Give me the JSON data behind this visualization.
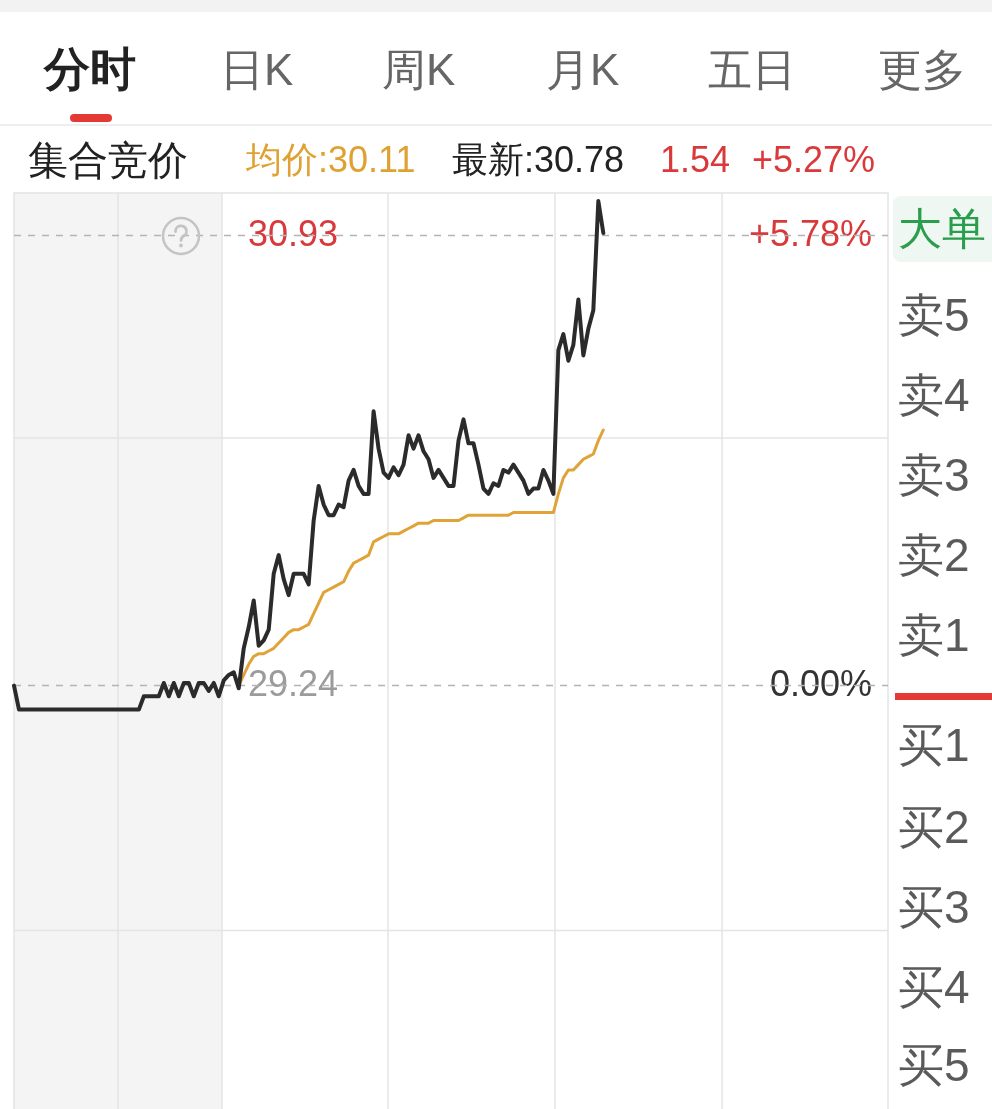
{
  "chart_data": {
    "type": "line",
    "annotations": [
      "分时",
      "日K",
      "周K",
      "月K",
      "五日",
      "更多",
      "集合竞价",
      "均价:30.11",
      "最新:30.78",
      "1.54",
      "+5.27%",
      "大单",
      "卖5",
      "卖4",
      "卖3",
      "卖2",
      "卖1",
      "买1",
      "买2",
      "买3",
      "买4",
      "买5"
    ],
    "categories": [
      null,
      null,
      null,
      null,
      null,
      null,
      null,
      null,
      null,
      null,
      null,
      null,
      null,
      null,
      null,
      null,
      null,
      null,
      null,
      null,
      null,
      null,
      null,
      null,
      null,
      null,
      null,
      null,
      null,
      null,
      null,
      null,
      null,
      null,
      null,
      null,
      null,
      null,
      null,
      null,
      null,
      null,
      null,
      null,
      null,
      null,
      null,
      null,
      null,
      null,
      null,
      null,
      null,
      null,
      null,
      null,
      null,
      null,
      null,
      null,
      null,
      null,
      null,
      null,
      null,
      null,
      null,
      null,
      null,
      null,
      null,
      null,
      null,
      null,
      null,
      null,
      null,
      null,
      null,
      null,
      null,
      null,
      null,
      null,
      null,
      null,
      null,
      null,
      null,
      null,
      null,
      null,
      null,
      null,
      null,
      null,
      null,
      null,
      null,
      null,
      null,
      null,
      null,
      null,
      null,
      null,
      null,
      null,
      null,
      null,
      null,
      null,
      null,
      null,
      null,
      null,
      null,
      null,
      null,
      null,
      null,
      null,
      null,
      null,
      null,
      null,
      null,
      null,
      null,
      null,
      null,
      null,
      null,
      null,
      null,
      null,
      null,
      null,
      null,
      null,
      null,
      null,
      null,
      null,
      null,
      null,
      null,
      null,
      null,
      null,
      null,
      null,
      null,
      null,
      null,
      null,
      null,
      null,
      null,
      null,
      null,
      null,
      null,
      null,
      null,
      null,
      null,
      null,
      null,
      null,
      null,
      null,
      null,
      null,
      null,
      null
    ],
    "series": [
      {
        "color": "#2b2b2b",
        "values": [
          29.24,
          29.15,
          29.15,
          29.15,
          29.15,
          29.15,
          29.15,
          29.15,
          29.15,
          29.15,
          29.15,
          29.15,
          29.15,
          29.15,
          29.15,
          29.15,
          29.15,
          29.15,
          29.15,
          29.15,
          29.15,
          29.15,
          29.15,
          29.15,
          29.15,
          29.15,
          29.2,
          29.2,
          29.2,
          29.2,
          29.25,
          29.2,
          29.25,
          29.2,
          29.25,
          29.25,
          29.2,
          29.25,
          29.25,
          29.22,
          29.25,
          29.2,
          29.26,
          29.28,
          29.29,
          29.23,
          29.38,
          29.46,
          29.56,
          29.39,
          29.41,
          29.45,
          29.66,
          29.73,
          29.64,
          29.58,
          29.66,
          29.66,
          29.66,
          29.62,
          29.86,
          29.99,
          29.92,
          29.88,
          29.88,
          29.92,
          29.91,
          30.01,
          30.05,
          29.99,
          29.96,
          29.96,
          30.27,
          30.13,
          30.04,
          30.02,
          30.06,
          30.03,
          30.07,
          30.18,
          30.13,
          30.18,
          30.12,
          30.09,
          30.02,
          30.05,
          30.02,
          29.99,
          29.99,
          30.16,
          30.24,
          30.15,
          30.15,
          30.07,
          29.98,
          29.96,
          30.0,
          29.99,
          30.05,
          30.04,
          30.07,
          30.04,
          30.01,
          29.96,
          29.98,
          29.98,
          30.05,
          30.01,
          29.96,
          30.5,
          30.56,
          30.46,
          30.52,
          30.69,
          30.48,
          30.58,
          30.65,
          31.06,
          30.94,
          null,
          null,
          null,
          null,
          null,
          null,
          null,
          null,
          null,
          null,
          null,
          null,
          null,
          null,
          null,
          null,
          null,
          null,
          null,
          null,
          null,
          null,
          null,
          null,
          null,
          null,
          null,
          null,
          null,
          null,
          null,
          null,
          null,
          null,
          null,
          null,
          null,
          null,
          null,
          null,
          null,
          null,
          null,
          null,
          null,
          null,
          null,
          null,
          null,
          null,
          null,
          null,
          null,
          null,
          null,
          null,
          null
        ]
      },
      {
        "color": "#e0a338",
        "values": [
          null,
          null,
          null,
          null,
          null,
          null,
          null,
          null,
          null,
          null,
          null,
          null,
          null,
          null,
          null,
          null,
          null,
          null,
          null,
          null,
          null,
          null,
          null,
          null,
          null,
          null,
          null,
          null,
          null,
          null,
          null,
          null,
          null,
          null,
          null,
          null,
          null,
          null,
          null,
          null,
          null,
          null,
          null,
          null,
          null,
          29.24,
          29.28,
          29.32,
          29.35,
          29.36,
          29.36,
          29.37,
          29.38,
          29.4,
          29.42,
          29.44,
          29.45,
          29.45,
          29.46,
          29.47,
          29.51,
          29.55,
          29.59,
          29.6,
          29.61,
          29.62,
          29.63,
          29.67,
          29.7,
          29.71,
          29.72,
          29.73,
          29.78,
          29.79,
          29.8,
          29.81,
          29.81,
          29.81,
          29.82,
          29.83,
          29.84,
          29.85,
          29.85,
          29.85,
          29.86,
          29.86,
          29.86,
          29.86,
          29.86,
          29.86,
          29.87,
          29.88,
          29.88,
          29.88,
          29.88,
          29.88,
          29.88,
          29.88,
          29.88,
          29.88,
          29.89,
          29.89,
          29.89,
          29.89,
          29.89,
          29.89,
          29.89,
          29.89,
          29.89,
          29.96,
          30.02,
          30.05,
          30.05,
          30.07,
          30.09,
          30.1,
          30.11,
          30.16,
          30.2,
          null,
          null,
          null,
          null,
          null,
          null,
          null,
          null,
          null,
          null,
          null,
          null,
          null,
          null,
          null,
          null,
          null,
          null,
          null,
          null,
          null,
          null,
          null,
          null,
          null,
          null,
          null,
          null,
          null,
          null,
          null,
          null,
          null,
          null,
          null,
          null,
          null,
          null,
          null,
          null,
          null,
          null,
          null,
          null,
          null,
          null,
          null,
          null,
          null,
          null,
          null,
          null,
          null,
          null,
          null,
          null,
          null
        ]
      }
    ],
    "ylim": [
      27.65,
      31.09
    ],
    "yticks": [
      {
        "value": 28.32,
        "label": null
      },
      {
        "value": 29.24,
        "label": "29.24"
      },
      {
        "value": 30.17,
        "label": null
      },
      {
        "value": 30.93,
        "label": "30.93"
      }
    ],
    "y2lim": [
      -5.44,
      6.33
    ],
    "y2ticks": [
      {
        "value": 0,
        "label": "0.00%"
      },
      {
        "value": 5.78,
        "label": "+5.78%"
      }
    ],
    "grid": true
  }
}
